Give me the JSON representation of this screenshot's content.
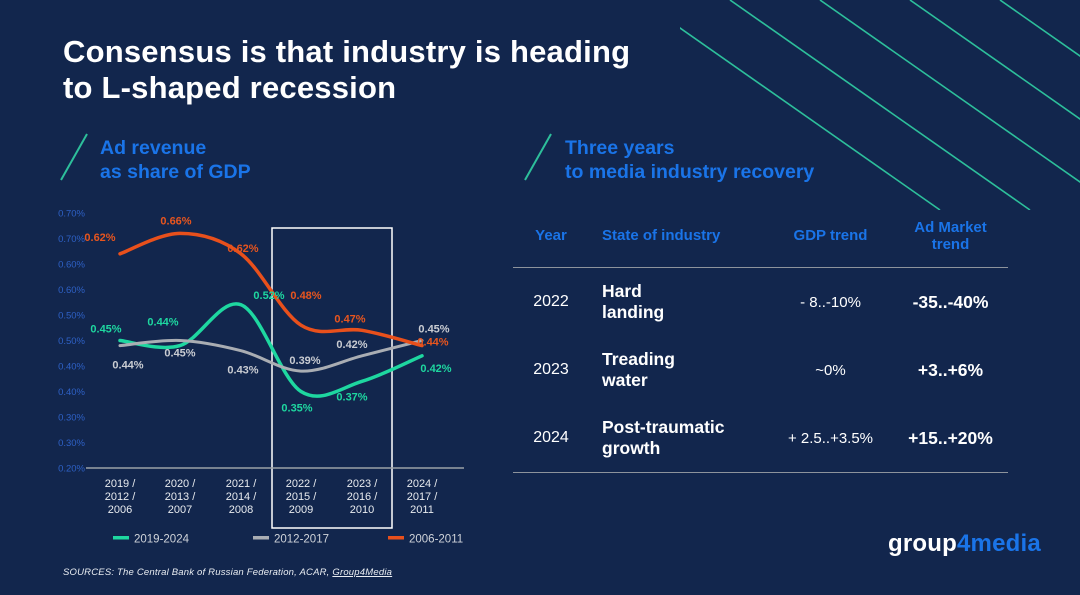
{
  "colors": {
    "background": "#12264d",
    "accent_blue": "#1a74e8",
    "teal": "#1ed7a0",
    "orange": "#e8501c",
    "gray_line": "#a9adb3",
    "decor_teal": "#2dbf9b",
    "axis_label_blue": "#2e61c6"
  },
  "title": "Consensus is that industry is heading\nto L-shaped recession",
  "left_section": {
    "heading": "Ad revenue\nas share of GDP"
  },
  "chart_data": {
    "type": "line",
    "title": "Ad revenue as share of GDP",
    "categories": [
      [
        "2019 /",
        "2012 /",
        "2006"
      ],
      [
        "2020 /",
        "2013 /",
        "2007"
      ],
      [
        "2021 /",
        "2014 /",
        "2008"
      ],
      [
        "2022 /",
        "2015 /",
        "2009"
      ],
      [
        "2023 /",
        "2016 /",
        "2010"
      ],
      [
        "2024 /",
        "2017 /",
        "2011"
      ]
    ],
    "y_tick_labels": [
      "0.70%",
      "0.70%",
      "0.60%",
      "0.60%",
      "0.50%",
      "0.50%",
      "0.40%",
      "0.40%",
      "0.30%",
      "0.30%",
      "0.20%"
    ],
    "ylim": [
      0.2,
      0.7
    ],
    "ylabel": "",
    "xlabel": "",
    "grid": false,
    "legend_position": "bottom",
    "series": [
      {
        "name": "2019-2024",
        "color": "#1ed7a0",
        "label_color": "#1ed7a0",
        "values": [
          0.45,
          0.44,
          0.52,
          0.35,
          0.37,
          0.42
        ],
        "labels": [
          "0.45%",
          "0.44%",
          "0.52%",
          "0.35%",
          "0.37%",
          "0.42%"
        ]
      },
      {
        "name": "2012-2017",
        "color": "#a9adb3",
        "label_color": "#c9ccd2",
        "values": [
          0.44,
          0.45,
          0.43,
          0.39,
          0.42,
          0.45
        ],
        "labels": [
          "0.44%",
          "0.45%",
          "0.43%",
          "0.39%",
          "0.42%",
          "0.45%"
        ]
      },
      {
        "name": "2006-2011",
        "color": "#e8501c",
        "label_color": "#e8551e",
        "values": [
          0.62,
          0.66,
          0.62,
          0.48,
          0.47,
          0.44
        ],
        "labels": [
          "0.62%",
          "0.66%",
          "0.62%",
          "0.48%",
          "0.47%",
          "0.44%"
        ]
      }
    ],
    "highlight_box": {
      "from_category_index": 3,
      "to_category_index": 4
    }
  },
  "right_section": {
    "heading": "Three years\nto media industry recovery",
    "table": {
      "headers": [
        "Year",
        "State of industry",
        "GDP trend",
        "Ad Market\ntrend"
      ],
      "rows": [
        {
          "year": "2022",
          "state": "Hard\nlanding",
          "gdp": "- 8..-10%",
          "ad": "-35..-40%"
        },
        {
          "year": "2023",
          "state": "Treading\nwater",
          "gdp": "~0%",
          "ad": "+3..+6%"
        },
        {
          "year": "2024",
          "state": "Post-traumatic\ngrowth",
          "gdp": "+ 2.5..+3.5%",
          "ad": "+15..+20%"
        }
      ]
    }
  },
  "footer": {
    "sources_prefix": "SOURCES: The Central Bank of Russian Federation, ACAR, ",
    "sources_link": "Group4Media",
    "logo": {
      "white_part": "group",
      "blue_part": "4media"
    }
  }
}
